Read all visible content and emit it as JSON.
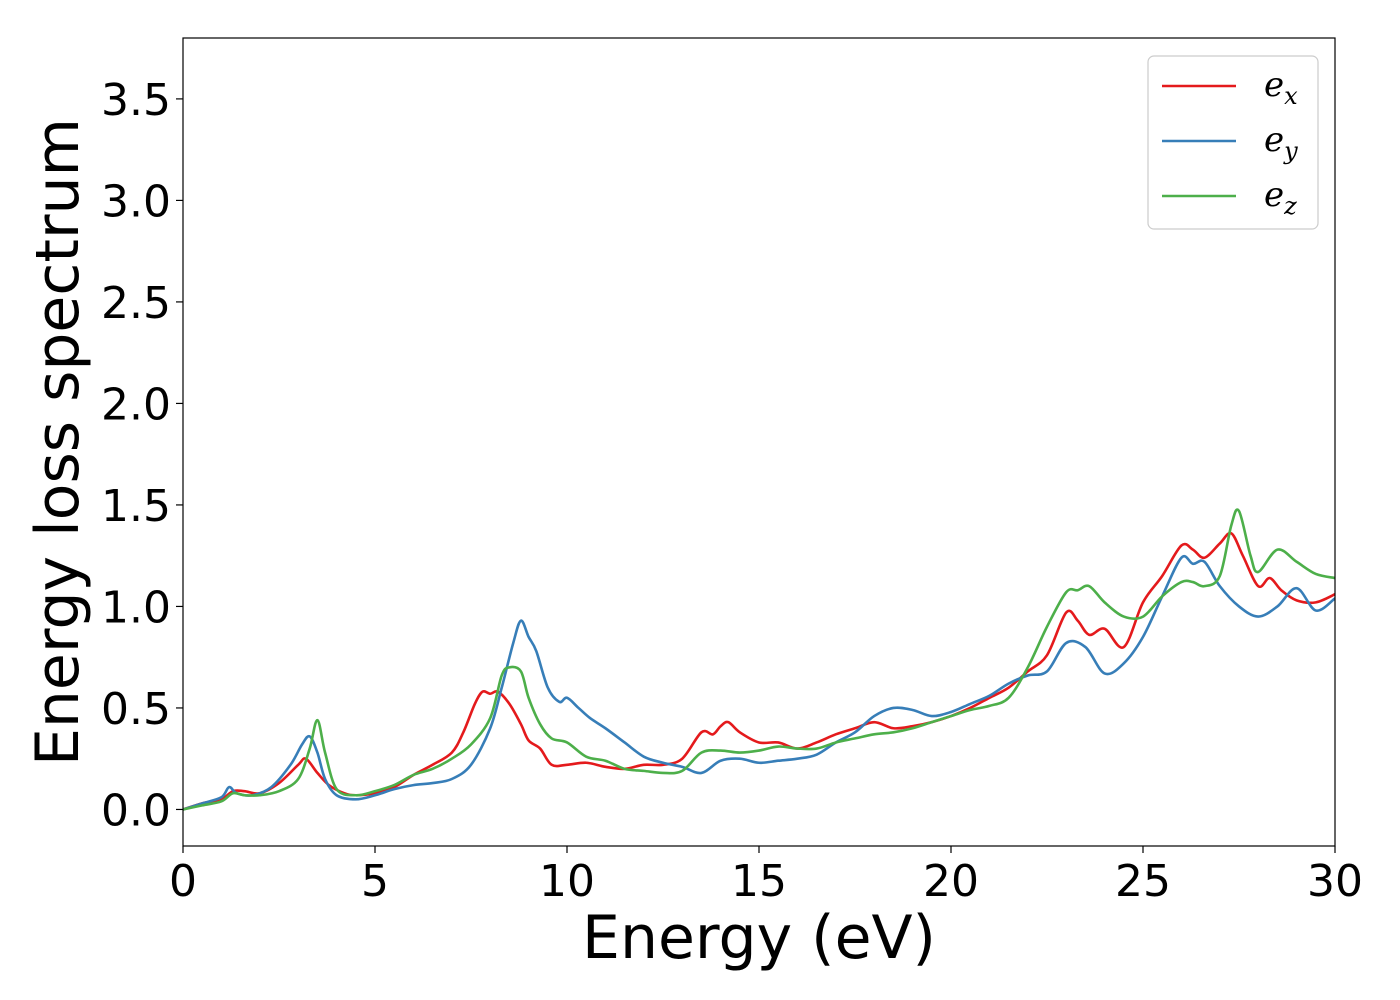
{
  "chart_data": {
    "type": "line",
    "title": "",
    "xlabel": "Energy (eV)",
    "ylabel": "Energy loss spectrum",
    "xlim": [
      0,
      30
    ],
    "ylim": [
      -0.18,
      3.8
    ],
    "xticks": [
      0,
      5,
      10,
      15,
      20,
      25,
      30
    ],
    "xtick_labels": [
      "0",
      "5",
      "10",
      "15",
      "20",
      "25",
      "30"
    ],
    "yticks": [
      0.0,
      0.5,
      1.0,
      1.5,
      2.0,
      2.5,
      3.0,
      3.5
    ],
    "ytick_labels": [
      "0.0",
      "0.5",
      "1.0",
      "1.5",
      "2.0",
      "2.5",
      "3.0",
      "3.5"
    ],
    "grid": false,
    "legend": "top-right",
    "series": [
      {
        "name": "e_x",
        "label_base": "e",
        "label_sub": "x",
        "color": "#e41a1c",
        "x": [
          0,
          0.5,
          1.0,
          1.3,
          1.6,
          2.0,
          2.5,
          3.0,
          3.2,
          3.5,
          3.8,
          4.2,
          4.5,
          5.0,
          5.5,
          6.0,
          6.5,
          7.0,
          7.3,
          7.6,
          7.8,
          8.0,
          8.2,
          8.5,
          8.8,
          9.0,
          9.3,
          9.6,
          10.0,
          10.5,
          11.0,
          11.5,
          12.0,
          12.5,
          13.0,
          13.5,
          13.8,
          14.0,
          14.2,
          14.5,
          15.0,
          15.5,
          16.0,
          16.5,
          17.0,
          17.5,
          18.0,
          18.5,
          19.0,
          19.5,
          20.0,
          20.5,
          21.0,
          21.5,
          22.0,
          22.5,
          23.0,
          23.3,
          23.6,
          24.0,
          24.5,
          25.0,
          25.5,
          26.0,
          26.3,
          26.6,
          27.0,
          27.3,
          27.6,
          28.0,
          28.3,
          28.6,
          29.0,
          29.5,
          30.0
        ],
        "y": [
          0,
          0.03,
          0.05,
          0.09,
          0.09,
          0.08,
          0.13,
          0.22,
          0.25,
          0.18,
          0.12,
          0.08,
          0.07,
          0.08,
          0.11,
          0.17,
          0.22,
          0.28,
          0.38,
          0.52,
          0.58,
          0.57,
          0.58,
          0.52,
          0.42,
          0.34,
          0.3,
          0.22,
          0.22,
          0.23,
          0.21,
          0.2,
          0.22,
          0.22,
          0.25,
          0.38,
          0.37,
          0.41,
          0.43,
          0.38,
          0.33,
          0.33,
          0.3,
          0.33,
          0.37,
          0.4,
          0.43,
          0.4,
          0.41,
          0.43,
          0.46,
          0.5,
          0.55,
          0.6,
          0.68,
          0.76,
          0.97,
          0.93,
          0.86,
          0.89,
          0.8,
          1.02,
          1.15,
          1.3,
          1.28,
          1.24,
          1.31,
          1.36,
          1.25,
          1.1,
          1.14,
          1.08,
          1.03,
          1.02,
          1.06
        ]
      },
      {
        "name": "e_y",
        "label_base": "e",
        "label_sub": "y",
        "color": "#377eb8",
        "x": [
          0,
          0.5,
          1.0,
          1.2,
          1.4,
          1.8,
          2.3,
          2.8,
          3.1,
          3.3,
          3.5,
          3.7,
          4.0,
          4.5,
          5.0,
          5.5,
          6.0,
          6.5,
          7.0,
          7.5,
          8.0,
          8.3,
          8.6,
          8.8,
          9.0,
          9.2,
          9.5,
          9.8,
          10.0,
          10.3,
          10.6,
          11.0,
          11.5,
          12.0,
          12.5,
          13.0,
          13.5,
          14.0,
          14.5,
          15.0,
          15.5,
          16.0,
          16.5,
          17.0,
          17.5,
          18.0,
          18.5,
          19.0,
          19.5,
          20.0,
          20.5,
          21.0,
          21.5,
          22.0,
          22.5,
          23.0,
          23.5,
          24.0,
          24.5,
          25.0,
          25.5,
          26.0,
          26.3,
          26.6,
          27.0,
          27.5,
          28.0,
          28.5,
          29.0,
          29.5,
          30.0
        ],
        "y": [
          0,
          0.03,
          0.06,
          0.11,
          0.08,
          0.07,
          0.11,
          0.22,
          0.32,
          0.36,
          0.28,
          0.15,
          0.07,
          0.05,
          0.07,
          0.1,
          0.12,
          0.13,
          0.15,
          0.22,
          0.4,
          0.6,
          0.82,
          0.93,
          0.85,
          0.78,
          0.6,
          0.53,
          0.55,
          0.5,
          0.45,
          0.4,
          0.33,
          0.26,
          0.23,
          0.21,
          0.18,
          0.24,
          0.25,
          0.23,
          0.24,
          0.25,
          0.27,
          0.33,
          0.38,
          0.46,
          0.5,
          0.49,
          0.46,
          0.48,
          0.52,
          0.56,
          0.62,
          0.66,
          0.68,
          0.82,
          0.8,
          0.67,
          0.72,
          0.85,
          1.05,
          1.24,
          1.21,
          1.22,
          1.1,
          1.0,
          0.95,
          1.0,
          1.09,
          0.98,
          1.04
        ]
      },
      {
        "name": "e_z",
        "label_base": "e",
        "label_sub": "z",
        "color": "#4daf4a",
        "x": [
          0,
          0.5,
          1.0,
          1.3,
          1.6,
          2.0,
          2.5,
          3.0,
          3.3,
          3.5,
          3.7,
          4.0,
          4.5,
          5.0,
          5.5,
          6.0,
          6.5,
          7.0,
          7.5,
          8.0,
          8.3,
          8.5,
          8.8,
          9.0,
          9.3,
          9.6,
          10.0,
          10.5,
          11.0,
          11.5,
          12.0,
          12.5,
          13.0,
          13.5,
          14.0,
          14.5,
          15.0,
          15.5,
          16.0,
          16.5,
          17.0,
          17.5,
          18.0,
          18.5,
          19.0,
          19.5,
          20.0,
          20.5,
          21.0,
          21.5,
          22.0,
          22.5,
          23.0,
          23.3,
          23.6,
          24.0,
          24.5,
          25.0,
          25.5,
          26.0,
          26.3,
          26.6,
          27.0,
          27.3,
          27.5,
          27.8,
          28.0,
          28.5,
          29.0,
          29.5,
          30.0
        ],
        "y": [
          0,
          0.02,
          0.04,
          0.08,
          0.07,
          0.07,
          0.09,
          0.15,
          0.3,
          0.44,
          0.28,
          0.1,
          0.07,
          0.09,
          0.12,
          0.17,
          0.2,
          0.25,
          0.32,
          0.45,
          0.66,
          0.7,
          0.68,
          0.55,
          0.42,
          0.35,
          0.33,
          0.26,
          0.24,
          0.2,
          0.19,
          0.18,
          0.19,
          0.28,
          0.29,
          0.28,
          0.29,
          0.31,
          0.3,
          0.3,
          0.33,
          0.35,
          0.37,
          0.38,
          0.4,
          0.43,
          0.46,
          0.49,
          0.51,
          0.55,
          0.7,
          0.9,
          1.07,
          1.08,
          1.1,
          1.02,
          0.95,
          0.95,
          1.05,
          1.12,
          1.12,
          1.1,
          1.15,
          1.4,
          1.47,
          1.25,
          1.17,
          1.28,
          1.22,
          1.16,
          1.14
        ]
      }
    ]
  }
}
